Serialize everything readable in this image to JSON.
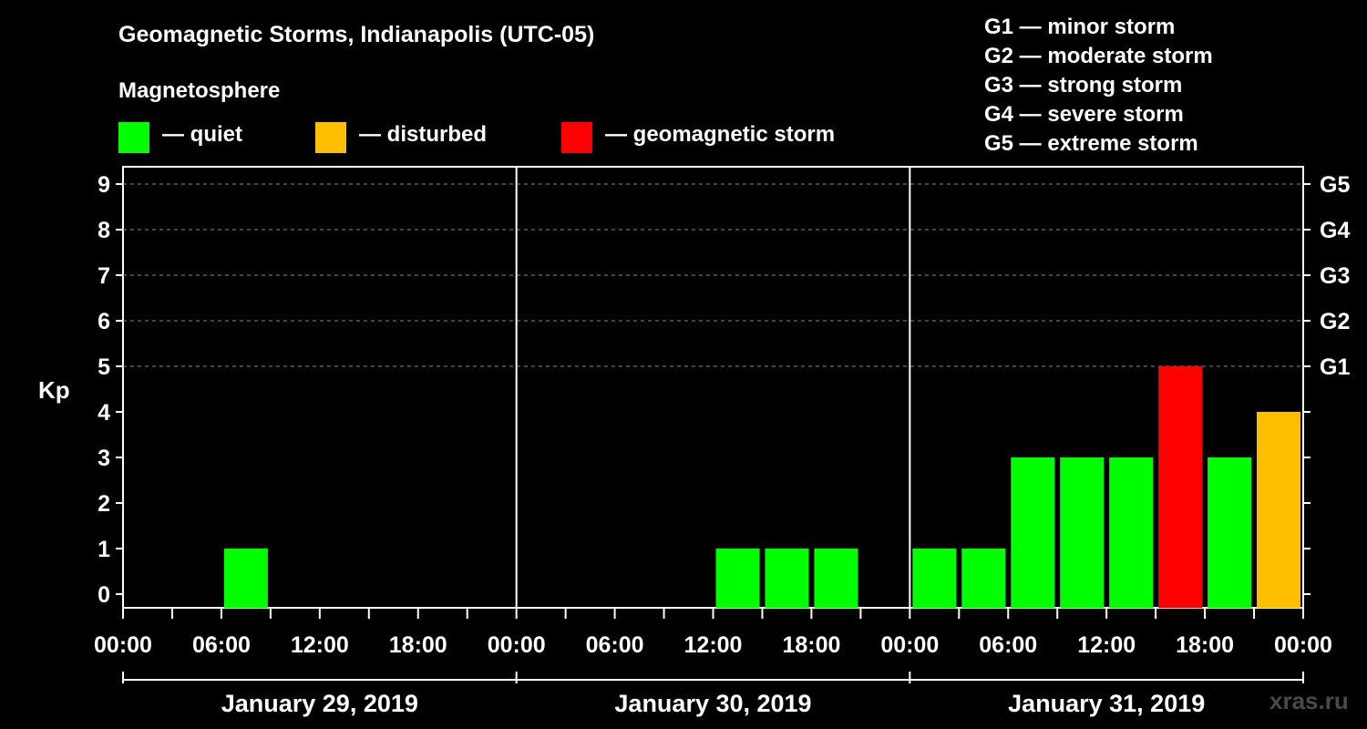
{
  "title": "Geomagnetic Storms, Indianapolis (UTC-05)",
  "legend": {
    "heading": "Magnetosphere",
    "items": [
      {
        "label": "— quiet",
        "color": "#00ff00"
      },
      {
        "label": "— disturbed",
        "color": "#ffbf00"
      },
      {
        "label": "— geomagnetic storm",
        "color": "#ff0000"
      }
    ]
  },
  "g_scale": [
    {
      "label": "G1 — minor storm"
    },
    {
      "label": "G2 — moderate storm"
    },
    {
      "label": "G3 — strong storm"
    },
    {
      "label": "G4 — severe storm"
    },
    {
      "label": "G5 — extreme storm"
    }
  ],
  "watermark": "xras.ru",
  "chart_data": {
    "type": "bar",
    "ylabel": "Kp",
    "ylim": [
      0,
      9
    ],
    "y_ticks": [
      0,
      1,
      2,
      3,
      4,
      5,
      6,
      7,
      8,
      9
    ],
    "right_axis": [
      {
        "kp": 5,
        "label": "G1"
      },
      {
        "kp": 6,
        "label": "G2"
      },
      {
        "kp": 7,
        "label": "G3"
      },
      {
        "kp": 8,
        "label": "G4"
      },
      {
        "kp": 9,
        "label": "G5"
      }
    ],
    "grid": "dashed horizontal at Kp 5-9",
    "x_tick_labels": [
      "00:00",
      "06:00",
      "12:00",
      "18:00",
      "00:00",
      "06:00",
      "12:00",
      "18:00",
      "00:00",
      "06:00",
      "12:00",
      "18:00",
      "00:00"
    ],
    "days": [
      "January 29, 2019",
      "January 30, 2019",
      "January 31, 2019"
    ],
    "bar_interval_hours": 3,
    "categories": [
      "Jan 29 00:00",
      "Jan 29 03:00",
      "Jan 29 06:00",
      "Jan 29 09:00",
      "Jan 29 12:00",
      "Jan 29 15:00",
      "Jan 29 18:00",
      "Jan 29 21:00",
      "Jan 30 00:00",
      "Jan 30 03:00",
      "Jan 30 06:00",
      "Jan 30 09:00",
      "Jan 30 12:00",
      "Jan 30 15:00",
      "Jan 30 18:00",
      "Jan 30 21:00",
      "Jan 31 00:00",
      "Jan 31 03:00",
      "Jan 31 06:00",
      "Jan 31 09:00",
      "Jan 31 12:00",
      "Jan 31 15:00",
      "Jan 31 18:00",
      "Jan 31 21:00"
    ],
    "values": [
      0,
      0,
      1,
      0,
      0,
      0,
      0,
      0,
      0,
      0,
      0,
      0,
      1,
      1,
      1,
      0,
      1,
      1,
      3,
      3,
      3,
      5,
      3,
      4
    ],
    "colors": {
      "quiet": "#00ff00",
      "disturbed": "#ffbf00",
      "storm": "#ff0000"
    }
  }
}
